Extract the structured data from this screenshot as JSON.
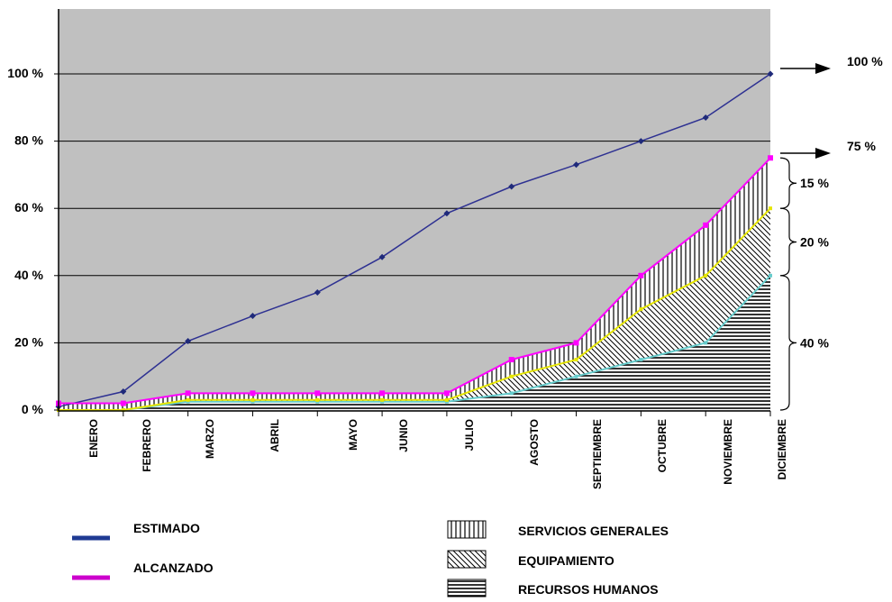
{
  "chart_data": {
    "type": "line",
    "categories": [
      "ENERO",
      "FEBRERO",
      "MARZO",
      "ABRIL",
      "MAYO",
      "JUNIO",
      "JULIO",
      "AGOSTO",
      "SEPTIEMBRE",
      "OCTUBRE",
      "NOVIEMBRE",
      "DICIEMBRE"
    ],
    "y_tick_labels": [
      "0 %",
      "20 %",
      "40 %",
      "60 %",
      "80 %",
      "100 %"
    ],
    "ylim": [
      0,
      110
    ],
    "grid": true,
    "series": [
      {
        "name": "ESTIMADO",
        "color": "#2e3192",
        "values": [
          1,
          5.5,
          20.5,
          28,
          35,
          45.5,
          58.5,
          66.5,
          73,
          80,
          87,
          100
        ]
      },
      {
        "name": "ALCANZADO",
        "color": "#ff00ff",
        "values": [
          2,
          2,
          5,
          5,
          5,
          5,
          5,
          15,
          20,
          40,
          55,
          75
        ]
      }
    ],
    "stacked_areas": [
      {
        "name": "RECURSOS HUMANOS",
        "pattern": "horizontal-lines",
        "line_color": "#66cccc",
        "values": [
          0,
          0,
          2.5,
          2.5,
          2.5,
          2.5,
          2.5,
          5,
          10,
          15,
          20,
          40
        ]
      },
      {
        "name": "EQUIPAMIENTO",
        "pattern": "diagonal-lines",
        "line_color": "#e6e600",
        "values": [
          0,
          0,
          3,
          3,
          3,
          3,
          3,
          10,
          15,
          30,
          40,
          60
        ]
      },
      {
        "name": "SERVICIOS GENERALES",
        "pattern": "vertical-lines",
        "line_color": "#ff00ff",
        "values": [
          2,
          2,
          5,
          5,
          5,
          5,
          5,
          15,
          20,
          40,
          55,
          75
        ]
      }
    ],
    "right_annotations": {
      "arrows": [
        {
          "label": "100 %",
          "value": 100
        },
        {
          "label": "75 %",
          "value": 75
        }
      ],
      "braces": [
        {
          "label": "15 %",
          "from": 60,
          "to": 75
        },
        {
          "label": "20 %",
          "from": 40,
          "to": 60
        },
        {
          "label": "40 %",
          "from": 0,
          "to": 40
        }
      ]
    },
    "legend": {
      "lines": [
        {
          "label": "ESTIMADO",
          "color": "#1f3a93"
        },
        {
          "label": "ALCANZADO",
          "color": "#cc00cc"
        }
      ],
      "patterns": [
        {
          "label": "SERVICIOS GENERALES",
          "pattern": "vertical-lines"
        },
        {
          "label": "EQUIPAMIENTO",
          "pattern": "diagonal-lines"
        },
        {
          "label": "RECURSOS HUMANOS",
          "pattern": "horizontal-lines"
        }
      ]
    },
    "colors": {
      "plot_background": "#c0c0c0",
      "grid": "#000000",
      "estimado": "#2e3192",
      "alcanzado": "#ff00ff"
    }
  }
}
